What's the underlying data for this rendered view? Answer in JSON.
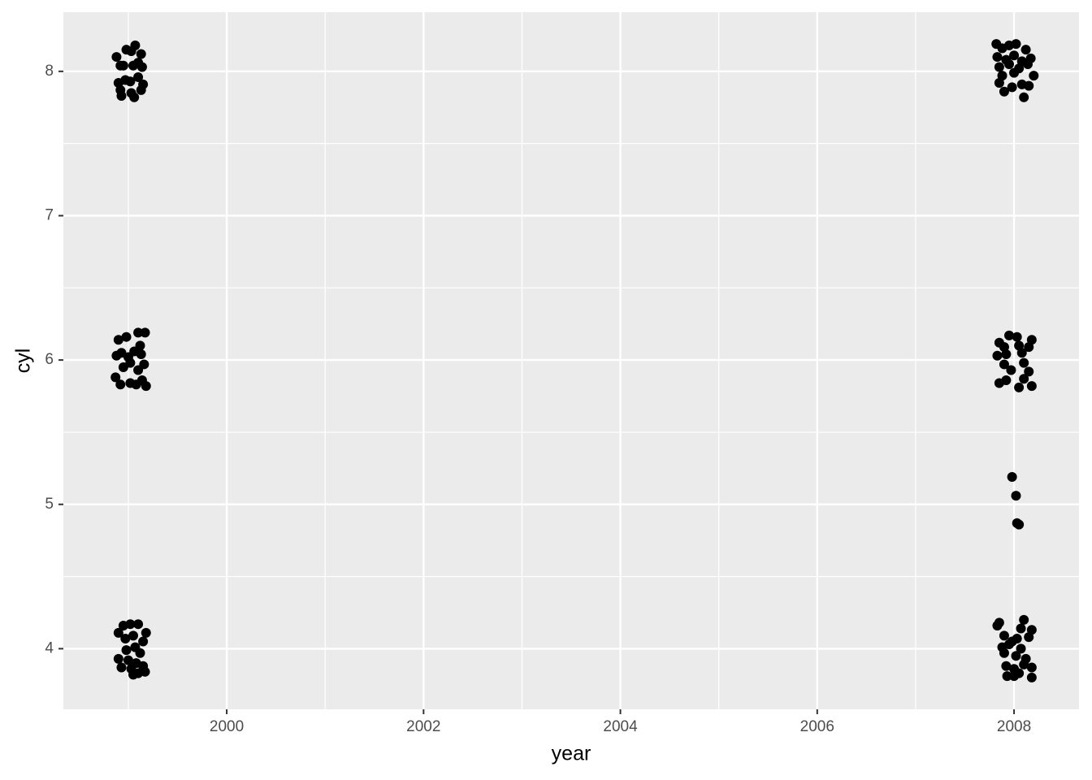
{
  "chart_data": {
    "type": "scatter",
    "x_label": "year",
    "y_label": "cyl",
    "color": "#000000",
    "grid": true,
    "xlim": [
      1998.34,
      2008.66
    ],
    "ylim": [
      3.58,
      8.41
    ],
    "xticks": [
      2000,
      2002,
      2004,
      2006,
      2008
    ],
    "yticks": [
      4,
      5,
      6,
      7,
      8
    ],
    "x": [
      1998.88,
      1998.92,
      1998.98,
      1999.03,
      1999.07,
      1999.13,
      1999.1,
      1999.05,
      1999.14,
      1998.95,
      1998.9,
      1998.97,
      1999.02,
      1999.1,
      1999.15,
      1999.13,
      1998.92,
      1998.93,
      1999.03,
      1999.06,
      1998.9,
      1998.98,
      1999.1,
      1999.17,
      1998.88,
      1998.93,
      1999.0,
      1999.06,
      1999.13,
      1999.12,
      1998.95,
      1999.02,
      1999.1,
      1999.16,
      1998.87,
      1998.92,
      1999.02,
      1999.08,
      1999.14,
      1999.18,
      1998.9,
      1998.95,
      1999.02,
      1999.1,
      1999.18,
      1998.97,
      1999.05,
      1999.15,
      1998.98,
      1999.07,
      1999.12,
      1998.9,
      1999.0,
      1999.08,
      1999.15,
      1998.93,
      1999.03,
      1999.1,
      1999.17,
      1999.05,
      2007.82,
      2007.88,
      2007.95,
      2008.02,
      2008.12,
      2007.83,
      2007.92,
      2008.0,
      2008.08,
      2008.17,
      2007.85,
      2007.95,
      2008.05,
      2008.14,
      2007.88,
      2008.0,
      2008.2,
      2007.85,
      2007.98,
      2008.08,
      2008.15,
      2007.9,
      2008.1,
      2007.85,
      2007.95,
      2008.03,
      2008.18,
      2007.9,
      2008.05,
      2008.15,
      2007.83,
      2007.92,
      2008.08,
      2007.9,
      2007.97,
      2008.1,
      2008.15,
      2007.85,
      2007.92,
      2008.05,
      2008.1,
      2008.18,
      2007.98,
      2008.02,
      2008.03,
      2008.05,
      2007.83,
      2007.85,
      2008.1,
      2008.18,
      2008.07,
      2007.9,
      2007.98,
      2008.03,
      2008.15,
      2007.88,
      2007.95,
      2008.07,
      2007.9,
      2008.02,
      2008.12,
      2007.92,
      2008.0,
      2008.1,
      2008.18,
      2007.93,
      2008.0,
      2008.05,
      2008.18
    ],
    "values": [
      8.1,
      8.04,
      8.15,
      8.14,
      8.18,
      8.12,
      8.06,
      8.04,
      8.03,
      8.04,
      7.92,
      7.94,
      7.93,
      7.96,
      7.91,
      7.87,
      7.87,
      7.83,
      7.85,
      7.82,
      6.14,
      6.16,
      6.19,
      6.19,
      6.03,
      6.05,
      6.02,
      6.06,
      6.04,
      6.1,
      5.95,
      5.98,
      5.93,
      5.97,
      5.88,
      5.83,
      5.84,
      5.83,
      5.86,
      5.82,
      4.11,
      4.16,
      4.17,
      4.17,
      4.11,
      4.07,
      4.09,
      4.05,
      3.99,
      4.01,
      3.97,
      3.93,
      3.92,
      3.9,
      3.88,
      3.87,
      3.86,
      3.83,
      3.84,
      3.82,
      8.19,
      8.16,
      8.18,
      8.19,
      8.15,
      8.1,
      8.08,
      8.11,
      8.07,
      8.09,
      8.03,
      8.05,
      8.02,
      8.05,
      7.97,
      7.99,
      7.97,
      7.92,
      7.89,
      7.91,
      7.9,
      7.86,
      7.82,
      6.12,
      6.17,
      6.16,
      6.14,
      6.09,
      6.1,
      6.09,
      6.03,
      6.04,
      6.05,
      5.97,
      5.93,
      5.98,
      5.92,
      5.84,
      5.86,
      5.81,
      5.87,
      5.82,
      5.19,
      5.06,
      4.87,
      4.86,
      4.16,
      4.18,
      4.2,
      4.13,
      4.14,
      4.09,
      4.05,
      4.07,
      4.08,
      4.01,
      4.03,
      4.0,
      3.97,
      3.95,
      3.93,
      3.88,
      3.86,
      3.89,
      3.87,
      3.81,
      3.81,
      3.83,
      3.8
    ]
  }
}
